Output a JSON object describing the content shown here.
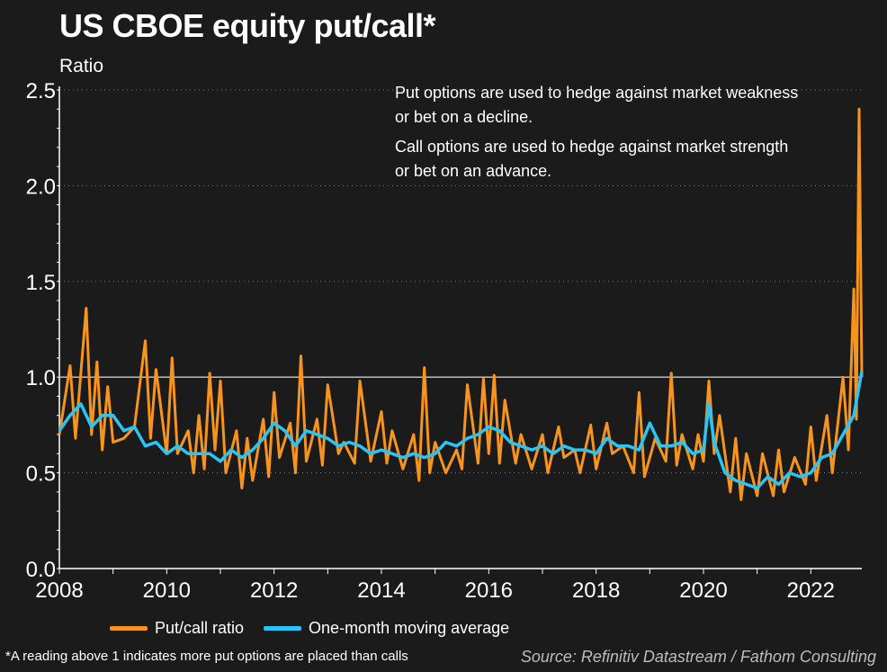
{
  "title": "US CBOE equity put/call*",
  "unit_label": "Ratio",
  "annotations": [
    "Put options are used to hedge against market weakness\nor bet on a decline.",
    "Call options are used to hedge against market strength\nor bet on an advance."
  ],
  "footnote": "*A reading above 1 indicates more put options are placed than calls",
  "source": "Source: Refinitiv Datastream / Fathom Consulting",
  "colors": {
    "background": "#1b1b1b",
    "put_call": "#f7941d",
    "moving_average": "#29c5f6",
    "reference_line": "#bdbdbd",
    "axis": "#ffffff"
  },
  "chart_data": {
    "type": "line",
    "title": "US CBOE equity put/call*",
    "ylabel": "Ratio",
    "xlabel": "",
    "xlim": [
      2008.0,
      2022.95
    ],
    "ylim": [
      0.0,
      2.5
    ],
    "y_ticks": [
      "0.0",
      "0.5",
      "1.0",
      "1.5",
      "2.0",
      "2.5"
    ],
    "x_ticks": [
      "2008",
      "2010",
      "2012",
      "2014",
      "2016",
      "2018",
      "2020",
      "2022"
    ],
    "grid": "horizontal dotted",
    "legend_position": "bottom",
    "reference_line": 1.0,
    "series": [
      {
        "name": "Put/call ratio",
        "color": "#f7941d",
        "points": [
          [
            2008.0,
            0.7
          ],
          [
            2008.2,
            1.06
          ],
          [
            2008.3,
            0.68
          ],
          [
            2008.5,
            1.36
          ],
          [
            2008.6,
            0.7
          ],
          [
            2008.7,
            1.08
          ],
          [
            2008.8,
            0.62
          ],
          [
            2008.9,
            0.95
          ],
          [
            2009.0,
            0.66
          ],
          [
            2009.2,
            0.68
          ],
          [
            2009.4,
            0.74
          ],
          [
            2009.6,
            1.19
          ],
          [
            2009.7,
            0.68
          ],
          [
            2009.8,
            1.04
          ],
          [
            2010.0,
            0.6
          ],
          [
            2010.1,
            1.1
          ],
          [
            2010.2,
            0.6
          ],
          [
            2010.4,
            0.72
          ],
          [
            2010.5,
            0.5
          ],
          [
            2010.6,
            0.8
          ],
          [
            2010.7,
            0.52
          ],
          [
            2010.8,
            1.02
          ],
          [
            2010.9,
            0.62
          ],
          [
            2011.0,
            0.98
          ],
          [
            2011.1,
            0.5
          ],
          [
            2011.3,
            0.72
          ],
          [
            2011.4,
            0.42
          ],
          [
            2011.5,
            0.68
          ],
          [
            2011.6,
            0.46
          ],
          [
            2011.8,
            0.78
          ],
          [
            2011.9,
            0.48
          ],
          [
            2012.0,
            0.92
          ],
          [
            2012.1,
            0.58
          ],
          [
            2012.3,
            0.76
          ],
          [
            2012.4,
            0.5
          ],
          [
            2012.5,
            1.11
          ],
          [
            2012.6,
            0.56
          ],
          [
            2012.8,
            0.78
          ],
          [
            2012.9,
            0.54
          ],
          [
            2013.0,
            0.96
          ],
          [
            2013.2,
            0.6
          ],
          [
            2013.3,
            0.66
          ],
          [
            2013.5,
            0.55
          ],
          [
            2013.6,
            0.98
          ],
          [
            2013.8,
            0.56
          ],
          [
            2014.0,
            0.82
          ],
          [
            2014.1,
            0.55
          ],
          [
            2014.2,
            0.72
          ],
          [
            2014.4,
            0.52
          ],
          [
            2014.6,
            0.7
          ],
          [
            2014.7,
            0.46
          ],
          [
            2014.8,
            1.05
          ],
          [
            2014.9,
            0.5
          ],
          [
            2015.0,
            0.66
          ],
          [
            2015.2,
            0.5
          ],
          [
            2015.4,
            0.62
          ],
          [
            2015.5,
            0.52
          ],
          [
            2015.6,
            0.96
          ],
          [
            2015.8,
            0.55
          ],
          [
            2015.9,
            0.99
          ],
          [
            2016.0,
            0.6
          ],
          [
            2016.1,
            1.01
          ],
          [
            2016.2,
            0.55
          ],
          [
            2016.3,
            0.88
          ],
          [
            2016.5,
            0.55
          ],
          [
            2016.6,
            0.7
          ],
          [
            2016.8,
            0.52
          ],
          [
            2017.0,
            0.7
          ],
          [
            2017.1,
            0.5
          ],
          [
            2017.3,
            0.74
          ],
          [
            2017.4,
            0.58
          ],
          [
            2017.6,
            0.62
          ],
          [
            2017.7,
            0.5
          ],
          [
            2017.9,
            0.75
          ],
          [
            2018.0,
            0.52
          ],
          [
            2018.2,
            0.76
          ],
          [
            2018.3,
            0.6
          ],
          [
            2018.5,
            0.64
          ],
          [
            2018.7,
            0.5
          ],
          [
            2018.8,
            0.92
          ],
          [
            2018.9,
            0.48
          ],
          [
            2019.1,
            0.68
          ],
          [
            2019.3,
            0.56
          ],
          [
            2019.4,
            1.02
          ],
          [
            2019.5,
            0.54
          ],
          [
            2019.6,
            0.7
          ],
          [
            2019.8,
            0.52
          ],
          [
            2019.9,
            0.7
          ],
          [
            2020.0,
            0.56
          ],
          [
            2020.1,
            0.98
          ],
          [
            2020.2,
            0.6
          ],
          [
            2020.3,
            0.8
          ],
          [
            2020.5,
            0.4
          ],
          [
            2020.6,
            0.68
          ],
          [
            2020.7,
            0.36
          ],
          [
            2020.8,
            0.6
          ],
          [
            2021.0,
            0.38
          ],
          [
            2021.1,
            0.6
          ],
          [
            2021.3,
            0.38
          ],
          [
            2021.4,
            0.62
          ],
          [
            2021.5,
            0.4
          ],
          [
            2021.7,
            0.58
          ],
          [
            2021.9,
            0.44
          ],
          [
            2022.0,
            0.74
          ],
          [
            2022.1,
            0.46
          ],
          [
            2022.3,
            0.8
          ],
          [
            2022.4,
            0.5
          ],
          [
            2022.6,
            1.0
          ],
          [
            2022.7,
            0.62
          ],
          [
            2022.8,
            1.46
          ],
          [
            2022.85,
            0.78
          ],
          [
            2022.9,
            2.4
          ],
          [
            2022.95,
            1.0
          ]
        ]
      },
      {
        "name": "One-month moving average",
        "color": "#29c5f6",
        "points": [
          [
            2008.0,
            0.72
          ],
          [
            2008.2,
            0.8
          ],
          [
            2008.4,
            0.86
          ],
          [
            2008.6,
            0.74
          ],
          [
            2008.8,
            0.8
          ],
          [
            2009.0,
            0.8
          ],
          [
            2009.2,
            0.72
          ],
          [
            2009.4,
            0.74
          ],
          [
            2009.6,
            0.64
          ],
          [
            2009.8,
            0.66
          ],
          [
            2010.0,
            0.6
          ],
          [
            2010.2,
            0.64
          ],
          [
            2010.4,
            0.6
          ],
          [
            2010.6,
            0.6
          ],
          [
            2010.8,
            0.6
          ],
          [
            2011.0,
            0.56
          ],
          [
            2011.2,
            0.62
          ],
          [
            2011.4,
            0.58
          ],
          [
            2011.6,
            0.62
          ],
          [
            2011.8,
            0.68
          ],
          [
            2012.0,
            0.76
          ],
          [
            2012.2,
            0.72
          ],
          [
            2012.4,
            0.64
          ],
          [
            2012.6,
            0.72
          ],
          [
            2012.8,
            0.7
          ],
          [
            2013.0,
            0.68
          ],
          [
            2013.2,
            0.64
          ],
          [
            2013.4,
            0.66
          ],
          [
            2013.6,
            0.64
          ],
          [
            2013.8,
            0.6
          ],
          [
            2014.0,
            0.62
          ],
          [
            2014.2,
            0.6
          ],
          [
            2014.4,
            0.58
          ],
          [
            2014.6,
            0.6
          ],
          [
            2014.8,
            0.58
          ],
          [
            2015.0,
            0.6
          ],
          [
            2015.2,
            0.66
          ],
          [
            2015.4,
            0.64
          ],
          [
            2015.6,
            0.68
          ],
          [
            2015.8,
            0.7
          ],
          [
            2016.0,
            0.74
          ],
          [
            2016.2,
            0.72
          ],
          [
            2016.4,
            0.66
          ],
          [
            2016.6,
            0.64
          ],
          [
            2016.8,
            0.62
          ],
          [
            2017.0,
            0.64
          ],
          [
            2017.2,
            0.6
          ],
          [
            2017.4,
            0.64
          ],
          [
            2017.6,
            0.62
          ],
          [
            2017.8,
            0.62
          ],
          [
            2018.0,
            0.6
          ],
          [
            2018.2,
            0.68
          ],
          [
            2018.4,
            0.64
          ],
          [
            2018.6,
            0.64
          ],
          [
            2018.8,
            0.62
          ],
          [
            2019.0,
            0.76
          ],
          [
            2019.2,
            0.64
          ],
          [
            2019.4,
            0.64
          ],
          [
            2019.6,
            0.66
          ],
          [
            2019.8,
            0.6
          ],
          [
            2020.0,
            0.62
          ],
          [
            2020.1,
            0.86
          ],
          [
            2020.2,
            0.66
          ],
          [
            2020.4,
            0.5
          ],
          [
            2020.6,
            0.46
          ],
          [
            2020.8,
            0.44
          ],
          [
            2021.0,
            0.42
          ],
          [
            2021.2,
            0.48
          ],
          [
            2021.4,
            0.44
          ],
          [
            2021.6,
            0.5
          ],
          [
            2021.8,
            0.48
          ],
          [
            2022.0,
            0.5
          ],
          [
            2022.2,
            0.58
          ],
          [
            2022.4,
            0.6
          ],
          [
            2022.6,
            0.7
          ],
          [
            2022.8,
            0.8
          ],
          [
            2022.95,
            1.03
          ]
        ]
      }
    ]
  },
  "legend": [
    "Put/call ratio",
    "One-month moving average"
  ]
}
